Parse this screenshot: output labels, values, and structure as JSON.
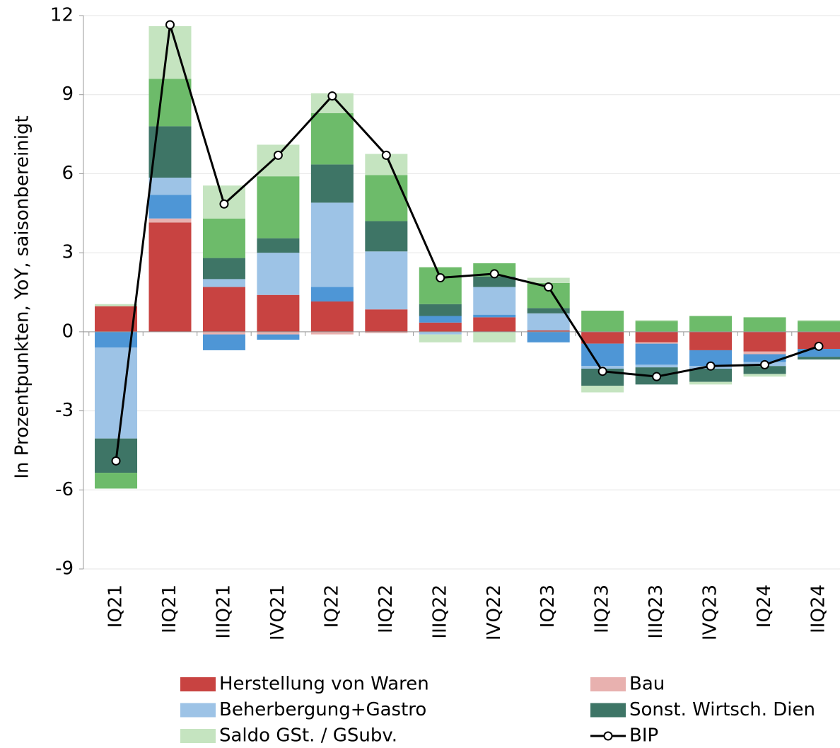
{
  "chart_data": {
    "type": "bar",
    "stacked": true,
    "y_label": "In Prozentpunkten, YoY, saisonbereinigt",
    "categories": [
      "IQ21",
      "IIQ21",
      "IIIQ21",
      "IVQ21",
      "IQ22",
      "IIQ22",
      "IIIQ22",
      "IVQ22",
      "IQ23",
      "IIQ23",
      "IIIQ23",
      "IVQ23",
      "IQ24",
      "IIQ24"
    ],
    "series": [
      {
        "name": "Herstellung von Waren",
        "color": "#c84341",
        "values": [
          0.97,
          4.15,
          1.7,
          1.4,
          1.15,
          0.85,
          0.35,
          0.55,
          0.05,
          -0.45,
          -0.4,
          -0.7,
          -0.75,
          -0.65
        ]
      },
      {
        "name": "Bau",
        "color": "#e8b1af",
        "values": [
          0,
          0.15,
          -0.1,
          -0.1,
          -0.1,
          -0.05,
          0,
          0,
          0,
          0,
          -0.05,
          0,
          -0.1,
          0
        ]
      },
      {
        "color": "#4e96d6",
        "values": [
          -0.6,
          0.9,
          -0.6,
          -0.2,
          0.55,
          0,
          0.25,
          0.1,
          -0.4,
          -0.85,
          -0.8,
          -0.6,
          -0.3,
          -0.3
        ]
      },
      {
        "name": "Beherbergung+Gastro",
        "color": "#9dc3e6",
        "values": [
          -3.45,
          0.65,
          0.3,
          1.6,
          3.2,
          2.2,
          -0.1,
          1.05,
          0.65,
          -0.1,
          -0.1,
          -0.1,
          -0.15,
          0
        ]
      },
      {
        "name": "Sonst. Wirtsch. Dien",
        "color": "#3e7566",
        "values": [
          -1.3,
          1.95,
          0.8,
          0.55,
          1.45,
          1.15,
          0.45,
          0.4,
          0.2,
          -0.65,
          -0.65,
          -0.5,
          -0.3,
          -0.1
        ]
      },
      {
        "color": "#6dbb6a",
        "values": [
          -0.6,
          1.8,
          1.5,
          2.35,
          1.95,
          1.75,
          1.4,
          0.5,
          0.95,
          0.8,
          0.4,
          0.6,
          0.55,
          0.4
        ]
      },
      {
        "name": "Saldo GSt. / GSubv.",
        "color": "#c5e4c0",
        "values": [
          0.08,
          2.0,
          1.25,
          1.2,
          0.75,
          0.8,
          -0.3,
          -0.4,
          0.2,
          -0.25,
          0.05,
          -0.1,
          -0.1,
          0.05
        ]
      },
      {
        "name": "BIP",
        "type": "line",
        "color": "#000000",
        "values": [
          -4.9,
          11.65,
          4.85,
          6.7,
          8.95,
          6.7,
          2.05,
          2.2,
          1.7,
          -1.5,
          -1.7,
          -1.3,
          -1.25,
          -0.55
        ]
      }
    ],
    "ylim": [
      -9,
      12
    ],
    "yticks": [
      -9,
      -6,
      -3,
      0,
      3,
      6,
      9,
      12
    ],
    "grid": true
  }
}
